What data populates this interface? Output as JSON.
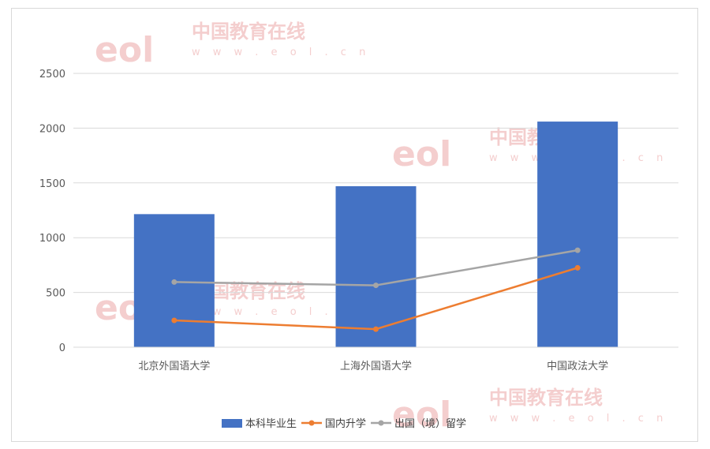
{
  "watermark": {
    "logo": "eol",
    "name": "中国教育在线",
    "url": "w w w . e o l . c n"
  },
  "chart_data": {
    "type": "bar",
    "categories": [
      "北京外国语大学",
      "上海外国语大学",
      "中国政法大学"
    ],
    "series": [
      {
        "name": "本科毕业生",
        "type": "bar",
        "values": [
          1215,
          1470,
          2060
        ],
        "color": "#4472c4"
      },
      {
        "name": "国内升学",
        "type": "line",
        "values": [
          245,
          165,
          725
        ],
        "color": "#ed7d31"
      },
      {
        "name": "出国（境）留学",
        "type": "line",
        "values": [
          595,
          565,
          885
        ],
        "color": "#a5a5a5"
      }
    ],
    "yticks": [
      "0",
      "500",
      "1000",
      "1500",
      "2000",
      "2500"
    ],
    "ylim": [
      0,
      2500
    ],
    "grid": true,
    "legend_position": "bottom"
  }
}
